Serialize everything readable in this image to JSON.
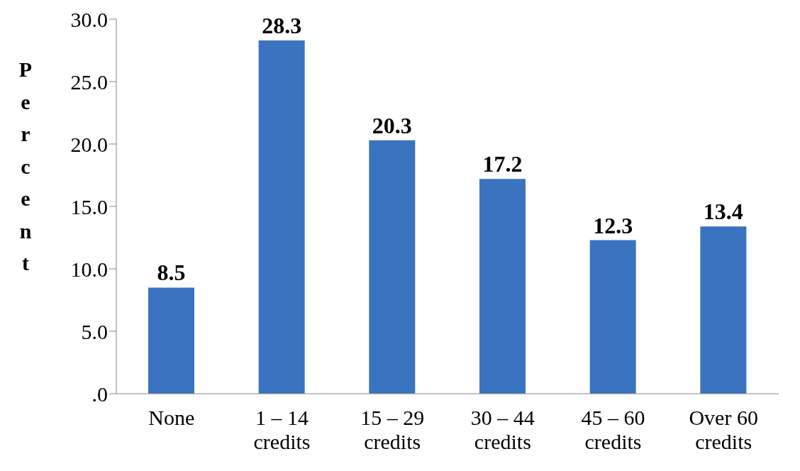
{
  "chart_data": {
    "type": "bar",
    "ylabel": "Percent",
    "categories": [
      "None",
      "1 – 14 credits",
      "15 – 29 credits",
      "30 – 44 credits",
      "45 – 60 credits",
      "Over 60 credits"
    ],
    "values": [
      8.5,
      28.3,
      20.3,
      17.2,
      12.3,
      13.4
    ],
    "color": "#3a74c0",
    "ylim": [
      0,
      30
    ],
    "yticks": [
      {
        "value": 0,
        "label": ".0"
      },
      {
        "value": 5,
        "label": "5.0"
      },
      {
        "value": 10,
        "label": "10.0"
      },
      {
        "value": 15,
        "label": "15.0"
      },
      {
        "value": 20,
        "label": "20.0"
      },
      {
        "value": 25,
        "label": "25.0"
      },
      {
        "value": 30,
        "label": "30.0"
      }
    ],
    "data_labels": true,
    "grid": false
  }
}
